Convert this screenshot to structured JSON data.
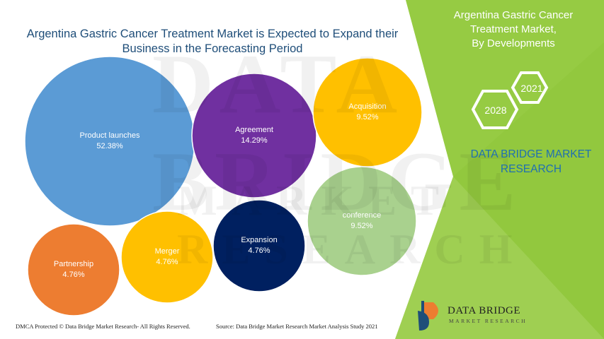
{
  "chart_data": {
    "type": "bubble",
    "title": "Argentina Gastric Cancer Treatment Market is Expected to Expand their Business in the Forecasting Period",
    "unit": "%",
    "series": [
      {
        "name": "Product launches",
        "value": 52.38,
        "label": "52.38%",
        "color": "#5b9bd5"
      },
      {
        "name": "Agreement",
        "value": 14.29,
        "label": "14.29%",
        "color": "#7030a0"
      },
      {
        "name": "Acquisition",
        "value": 9.52,
        "label": "9.52%",
        "color": "#ffc000"
      },
      {
        "name": "conference",
        "value": 9.52,
        "label": "9.52%",
        "color": "#a9d18e"
      },
      {
        "name": "Expansion",
        "value": 4.76,
        "label": "4.76%",
        "color": "#002060"
      },
      {
        "name": "Merger",
        "value": 4.76,
        "label": "4.76%",
        "color": "#ffc000"
      },
      {
        "name": "Partnership",
        "value": 4.76,
        "label": "4.76%",
        "color": "#ed7d31"
      }
    ]
  },
  "side_panel": {
    "title_line1": "Argentina Gastric Cancer",
    "title_line2": "Treatment Market,",
    "title_line3": "By Developments",
    "year_start": "2021",
    "year_end": "2028",
    "brand_line1": "DATA BRIDGE MARKET",
    "brand_line2": "RESEARCH",
    "panel_color": "#92c83e"
  },
  "watermark": {
    "line1": "DATA BRIDGE",
    "line2": "MARKET RESEARCH"
  },
  "footer": {
    "dmca": "DMCA Protected © Data Bridge Market Research- All Rights Reserved.",
    "source": "Source: Data Bridge Market Research Market Analysis Study 2021"
  },
  "logo": {
    "name": "DATA BRIDGE",
    "tagline": "MARKET RESEARCH"
  }
}
